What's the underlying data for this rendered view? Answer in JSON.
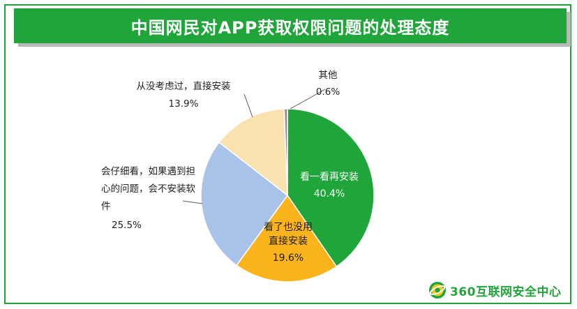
{
  "chart_data": {
    "type": "pie",
    "title": "中国网民对APP获取权限问题的处理态度",
    "slices": [
      {
        "label_lines": [
          "看一看再安装"
        ],
        "value_label": "40.4%",
        "value": 40.4,
        "color": "#1fa53a"
      },
      {
        "label_lines": [
          "看了也没用",
          "直接安装"
        ],
        "value_label": "19.6%",
        "value": 19.6,
        "color": "#fbb41b"
      },
      {
        "label_lines": [
          "会仔细看，如果遇到担",
          "心的问题，会不安装软",
          "件"
        ],
        "value_label": "25.5%",
        "value": 25.5,
        "color": "#a9c2e8"
      },
      {
        "label_lines": [
          "从没考虑过，直接安装"
        ],
        "value_label": "13.9%",
        "value": 13.9,
        "color": "#f8e3b0"
      },
      {
        "label_lines": [
          "其他"
        ],
        "value_label": "0.6%",
        "value": 0.6,
        "color": "#8f8f8f"
      }
    ]
  },
  "logo": {
    "text": "360互联网安全中心",
    "icon": "360-logo-icon"
  }
}
